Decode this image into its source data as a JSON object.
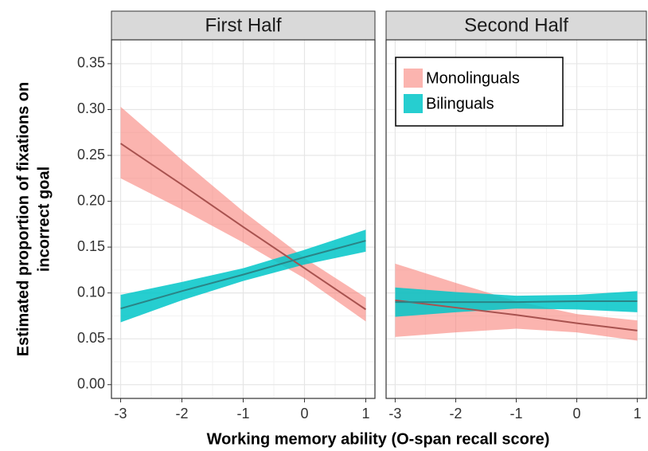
{
  "chart_data": [
    {
      "type": "line",
      "title": "First Half",
      "x": [
        -3,
        -2,
        -1,
        0,
        1
      ],
      "xlim": [
        -3.15,
        1.15
      ],
      "xticks": [
        -3,
        -2,
        -1,
        0,
        1
      ],
      "ylim": [
        -0.015,
        0.376
      ],
      "yticks": [
        {
          "value": 0,
          "label": "0.00"
        },
        {
          "value": 0.05,
          "label": "0.05"
        },
        {
          "value": 0.1,
          "label": "0.10"
        },
        {
          "value": 0.15,
          "label": "0.15"
        },
        {
          "value": 0.2,
          "label": "0.20"
        },
        {
          "value": 0.25,
          "label": "0.25"
        },
        {
          "value": 0.3,
          "label": "0.30"
        },
        {
          "value": 0.35,
          "label": "0.35"
        }
      ],
      "grid": true,
      "series": [
        {
          "color": "#f8766d",
          "line_color": "#a8524f",
          "values": [
            0.263,
            0.218,
            0.172,
            0.127,
            0.082
          ],
          "lower": [
            0.225,
            0.191,
            0.155,
            0.116,
            0.069
          ],
          "upper": [
            0.303,
            0.245,
            0.189,
            0.138,
            0.095
          ]
        },
        {
          "color": "#00c5c8",
          "line_color": "#2a8486",
          "values": [
            0.083,
            0.102,
            0.12,
            0.139,
            0.157
          ],
          "lower": [
            0.068,
            0.092,
            0.113,
            0.131,
            0.145
          ],
          "upper": [
            0.098,
            0.112,
            0.127,
            0.147,
            0.169
          ]
        }
      ]
    },
    {
      "type": "line",
      "title": "Second Half",
      "x": [
        -3,
        -2,
        -1,
        0,
        1
      ],
      "xlim": [
        -3.15,
        1.15
      ],
      "xticks": [
        -3,
        -2,
        -1,
        0,
        1
      ],
      "ylim": [
        -0.015,
        0.376
      ],
      "yticks": [
        0,
        0.05,
        0.1,
        0.15,
        0.2,
        0.25,
        0.3,
        0.35
      ],
      "grid": true,
      "legend": "top-left",
      "series": [
        {
          "name": "Monolinguals",
          "color": "#f8766d",
          "line_color": "#a8524f",
          "values": [
            0.092,
            0.084,
            0.076,
            0.067,
            0.059
          ],
          "lower": [
            0.052,
            0.057,
            0.061,
            0.057,
            0.048
          ],
          "upper": [
            0.132,
            0.111,
            0.091,
            0.077,
            0.07
          ]
        },
        {
          "name": "Bilinguals",
          "color": "#00c5c8",
          "line_color": "#2a8486",
          "values": [
            0.09,
            0.09,
            0.09,
            0.091,
            0.091
          ],
          "lower": [
            0.074,
            0.079,
            0.083,
            0.082,
            0.079
          ],
          "upper": [
            0.106,
            0.101,
            0.097,
            0.098,
            0.102
          ]
        }
      ]
    }
  ],
  "x_label": "Working memory ability (O-span recall score)",
  "y_label": [
    "Estimated proportion of fixations on",
    "incorrect goal"
  ]
}
